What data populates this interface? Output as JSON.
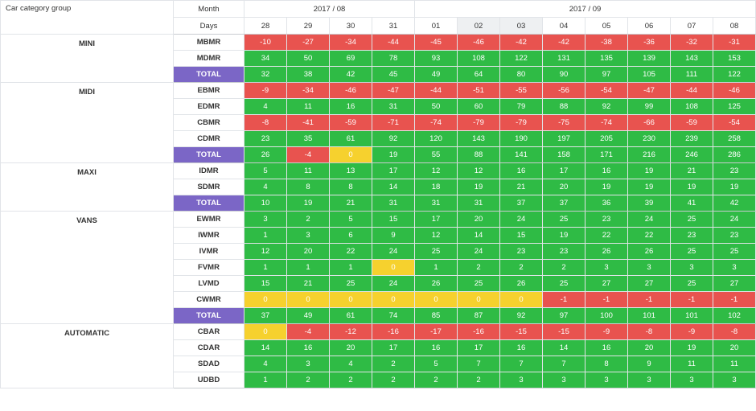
{
  "header": {
    "category_label": "Car category group",
    "month_label": "Month",
    "days_label": "Days",
    "months": [
      {
        "label": "2017 / 08",
        "span": 4
      },
      {
        "label": "2017 / 09",
        "span": 8
      }
    ],
    "days": [
      "28",
      "29",
      "30",
      "31",
      "01",
      "02",
      "03",
      "04",
      "05",
      "06",
      "07",
      "08"
    ],
    "highlighted_days": [
      5,
      6
    ]
  },
  "colors": {
    "negative": "#e8534f",
    "positive": "#2fbb45",
    "zero": "#f6d12e",
    "total": "#7b66c6"
  },
  "groups": [
    {
      "name": "MINI",
      "rows": [
        {
          "code": "MBMR",
          "values": [
            -10,
            -27,
            -34,
            -44,
            -45,
            -46,
            -42,
            -42,
            -38,
            -36,
            -32,
            -31
          ]
        },
        {
          "code": "MDMR",
          "values": [
            34,
            50,
            69,
            78,
            93,
            108,
            122,
            131,
            135,
            139,
            143,
            153
          ]
        },
        {
          "code": "TOTAL",
          "total": true,
          "values": [
            32,
            38,
            42,
            45,
            49,
            64,
            80,
            90,
            97,
            105,
            111,
            122
          ]
        }
      ]
    },
    {
      "name": "MIDI",
      "rows": [
        {
          "code": "EBMR",
          "values": [
            -9,
            -34,
            -46,
            -47,
            -44,
            -51,
            -55,
            -56,
            -54,
            -47,
            -44,
            -46
          ]
        },
        {
          "code": "EDMR",
          "values": [
            4,
            11,
            16,
            31,
            50,
            60,
            79,
            88,
            92,
            99,
            108,
            125
          ]
        },
        {
          "code": "CBMR",
          "values": [
            -8,
            -41,
            -59,
            -71,
            -74,
            -79,
            -79,
            -75,
            -74,
            -66,
            -59,
            -54
          ]
        },
        {
          "code": "CDMR",
          "values": [
            23,
            35,
            61,
            92,
            120,
            143,
            190,
            197,
            205,
            230,
            239,
            258
          ]
        },
        {
          "code": "TOTAL",
          "total": true,
          "values": [
            26,
            -4,
            0,
            19,
            55,
            88,
            141,
            158,
            171,
            216,
            246,
            286
          ]
        }
      ]
    },
    {
      "name": "MAXI",
      "rows": [
        {
          "code": "IDMR",
          "values": [
            5,
            11,
            13,
            17,
            12,
            12,
            16,
            17,
            16,
            19,
            21,
            23
          ]
        },
        {
          "code": "SDMR",
          "values": [
            4,
            8,
            8,
            14,
            18,
            19,
            21,
            20,
            19,
            19,
            19,
            19
          ]
        },
        {
          "code": "TOTAL",
          "total": true,
          "values": [
            10,
            19,
            21,
            31,
            31,
            31,
            37,
            37,
            36,
            39,
            41,
            42
          ]
        }
      ]
    },
    {
      "name": "VANS",
      "rows": [
        {
          "code": "EWMR",
          "values": [
            3,
            2,
            5,
            15,
            17,
            20,
            24,
            25,
            23,
            24,
            25,
            24
          ]
        },
        {
          "code": "IWMR",
          "values": [
            1,
            3,
            6,
            9,
            12,
            14,
            15,
            19,
            22,
            22,
            23,
            23
          ]
        },
        {
          "code": "IVMR",
          "values": [
            12,
            20,
            22,
            24,
            25,
            24,
            23,
            23,
            26,
            26,
            25,
            25
          ]
        },
        {
          "code": "FVMR",
          "values": [
            1,
            1,
            1,
            0,
            1,
            2,
            2,
            2,
            3,
            3,
            3,
            3
          ]
        },
        {
          "code": "LVMD",
          "values": [
            15,
            21,
            25,
            24,
            26,
            25,
            26,
            25,
            27,
            27,
            25,
            27
          ]
        },
        {
          "code": "CWMR",
          "values": [
            0,
            0,
            0,
            0,
            0,
            0,
            0,
            -1,
            -1,
            -1,
            -1,
            -1
          ]
        },
        {
          "code": "TOTAL",
          "total": true,
          "values": [
            37,
            49,
            61,
            74,
            85,
            87,
            92,
            97,
            100,
            101,
            101,
            102
          ]
        }
      ]
    },
    {
      "name": "AUTOMATIC",
      "rows": [
        {
          "code": "CBAR",
          "values": [
            0,
            -4,
            -12,
            -16,
            -17,
            -16,
            -15,
            -15,
            -9,
            -8,
            -9,
            -8
          ]
        },
        {
          "code": "CDAR",
          "values": [
            14,
            16,
            20,
            17,
            16,
            17,
            16,
            14,
            16,
            20,
            19,
            20
          ]
        },
        {
          "code": "SDAD",
          "values": [
            4,
            3,
            4,
            2,
            5,
            7,
            7,
            7,
            8,
            9,
            11,
            11
          ]
        },
        {
          "code": "UDBD",
          "values": [
            1,
            2,
            2,
            2,
            2,
            2,
            3,
            3,
            3,
            3,
            3,
            3
          ]
        }
      ]
    }
  ]
}
